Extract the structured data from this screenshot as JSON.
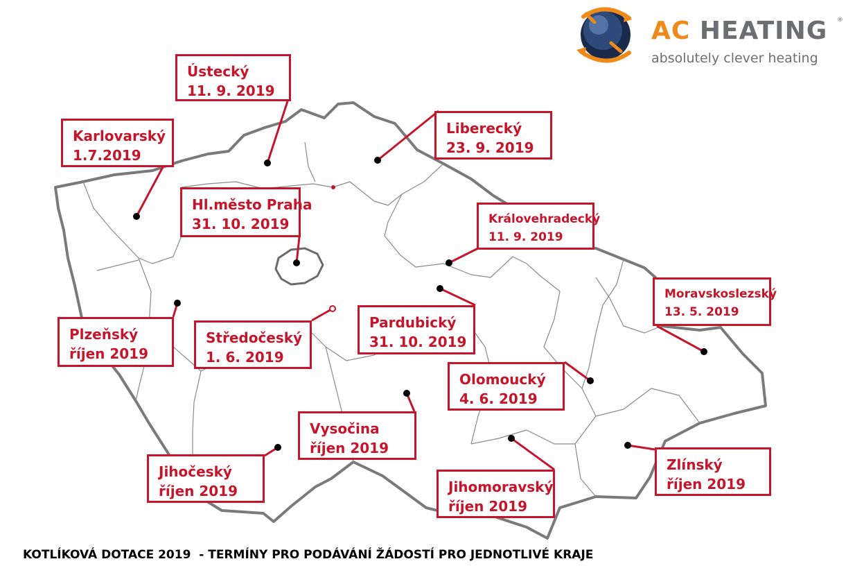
{
  "brand": {
    "name_part1": "AC",
    "name_part2": "HEATING",
    "registered": "®",
    "tagline": "absolutely clever heating"
  },
  "title": "KOTLÍKOVÁ DOTACE 2019  - TERMÍNY PRO PODÁVÁNÍ ŽÁDOSTÍ PRO JEDNOTLIVÉ KRAJE",
  "colors": {
    "accent": "#c5152a",
    "border": "#777777",
    "logo_orange": "#ee8a1a",
    "logo_gray": "#6d6e71"
  },
  "regions": [
    {
      "name": "Ústecký",
      "date": "11. 9. 2019"
    },
    {
      "name": "Karlovarský",
      "date": "1.7.2019"
    },
    {
      "name": "Liberecký",
      "date": "23. 9. 2019"
    },
    {
      "name": "Hl.město Praha",
      "date": "31. 10. 2019"
    },
    {
      "name": "Královehradecký",
      "date": "11. 9. 2019"
    },
    {
      "name": "Moravskoslezský",
      "date": "13. 5. 2019"
    },
    {
      "name": "Plzeňský",
      "date": "říjen 2019"
    },
    {
      "name": "Středočeský",
      "date": "1. 6. 2019"
    },
    {
      "name": "Pardubický",
      "date": "31. 10. 2019"
    },
    {
      "name": "Olomoucký",
      "date": "4. 6. 2019"
    },
    {
      "name": "Vysočina",
      "date": "říjen 2019"
    },
    {
      "name": "Jihočeský",
      "date": "říjen 2019"
    },
    {
      "name": "Jihomoravský",
      "date": "říjen 2019"
    },
    {
      "name": "Zlínský",
      "date": "říjen 2019"
    }
  ]
}
